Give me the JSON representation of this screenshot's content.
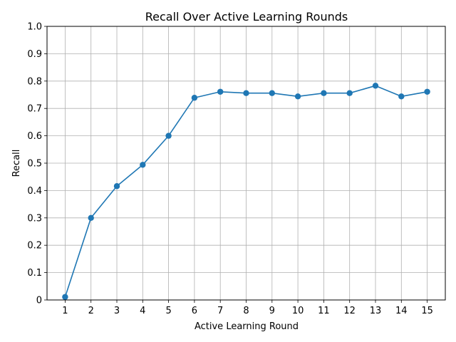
{
  "chart_data": {
    "type": "line",
    "title": "Recall Over Active Learning Rounds",
    "xlabel": "Active Learning Round",
    "ylabel": "Recall",
    "x": [
      1,
      2,
      3,
      4,
      5,
      6,
      7,
      8,
      9,
      10,
      11,
      12,
      13,
      14,
      15
    ],
    "series": [
      {
        "values": [
          0.011,
          0.3,
          0.416,
          0.494,
          0.6,
          0.739,
          0.761,
          0.756,
          0.756,
          0.744,
          0.756,
          0.756,
          0.783,
          0.744,
          0.761
        ],
        "color": "#1f77b4",
        "marker": "circle"
      }
    ],
    "xticks": [
      "1",
      "2",
      "3",
      "4",
      "5",
      "6",
      "7",
      "8",
      "9",
      "10",
      "11",
      "12",
      "13",
      "14",
      "15"
    ],
    "yticks": [
      "0",
      "0.1",
      "0.2",
      "0.3",
      "0.4",
      "0.5",
      "0.6",
      "0.7",
      "0.8",
      "0.9",
      "1.0"
    ],
    "xlim": [
      0.3,
      15.7
    ],
    "ylim": [
      0,
      1.0
    ],
    "grid": true
  }
}
